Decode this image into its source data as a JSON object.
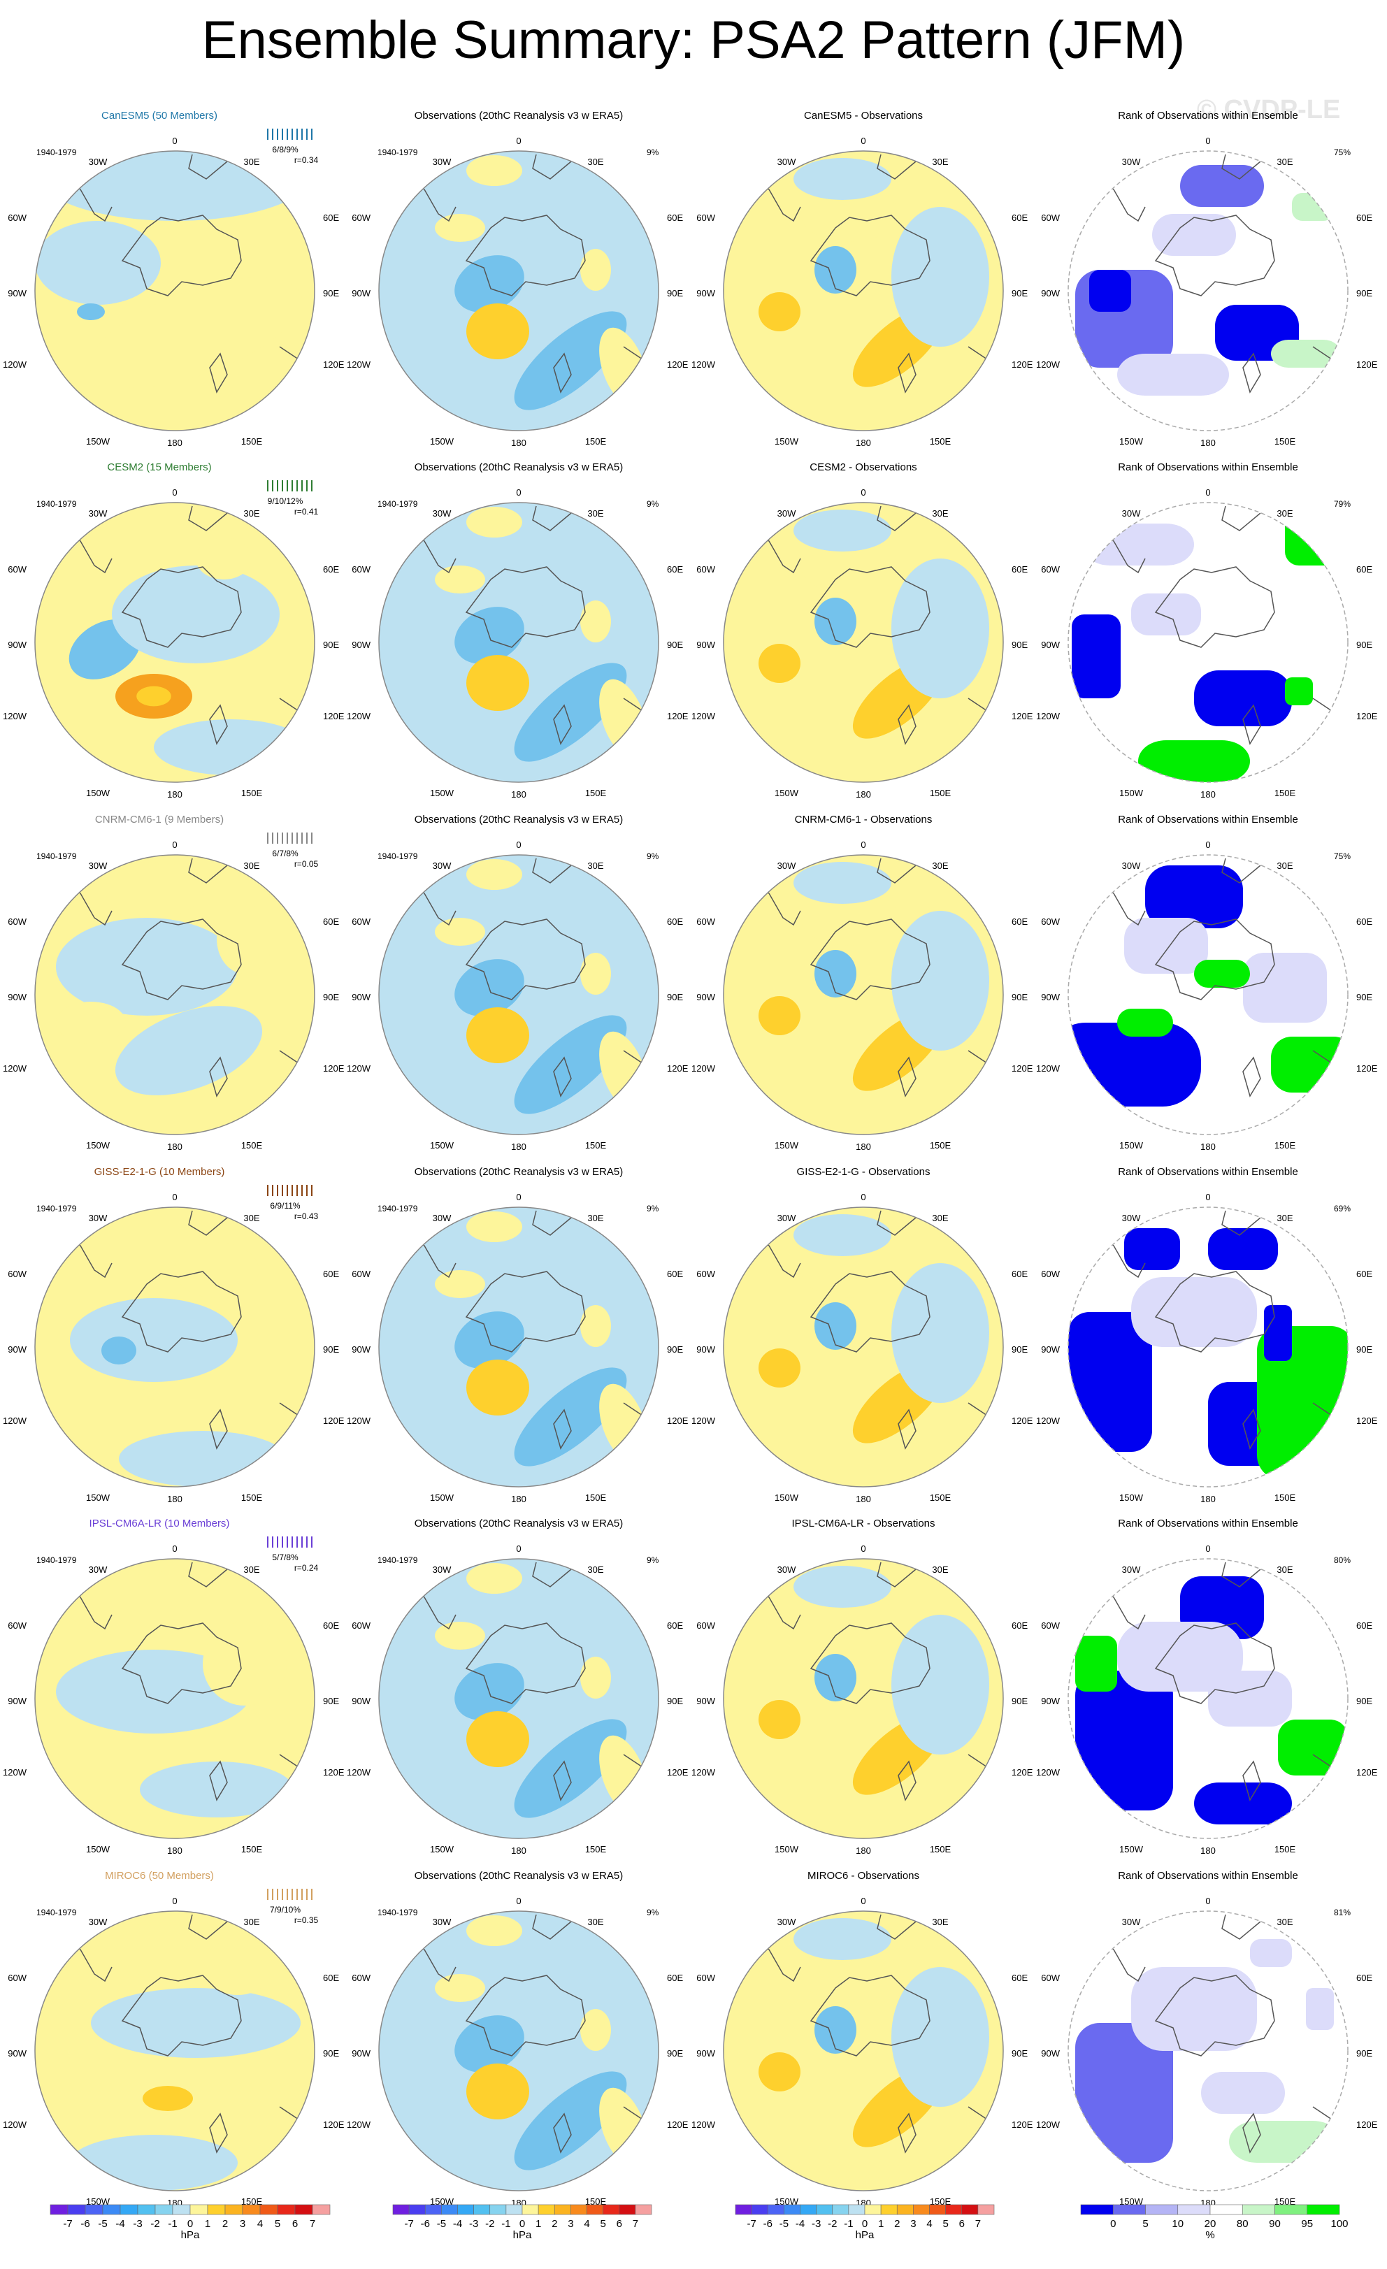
{
  "title": "Ensemble Summary: PSA2 Pattern (JFM)",
  "watermark": "© CVDP-LE",
  "colors": {
    "yellow": "#fdf59b",
    "lightblue": "#bde1f1",
    "medblue": "#74c2ec",
    "orange": "#fed02d",
    "darkorange": "#f6a11e",
    "rank_blue": "#0000f0",
    "rank_midblue": "#6a6af0",
    "rank_lightblue": "#dcdcfa",
    "rank_green": "#00ee00",
    "rank_lightgreen": "#c8f5c8"
  },
  "common": {
    "period": "1940-1979",
    "obs_title": "Observations (20thC Reanalysis v3 w ERA5)",
    "obs_pct": "9%",
    "rank_title": "Rank of Observations within Ensemble",
    "lon_labels": {
      "0": "0",
      "30E": "30E",
      "60E": "60E",
      "90E": "90E",
      "120E": "120E",
      "150E": "150E",
      "180": "180",
      "150W": "150W",
      "120W": "120W",
      "90W": "90W",
      "60W": "60W",
      "30W": "30W"
    }
  },
  "rows": [
    {
      "model": "CanESM5 (50 Members)",
      "model_color": "#1f77a8",
      "stats": "6/8/9%",
      "r": "r=0.34",
      "diff_title": "CanESM5 - Observations",
      "rank_pct": "75%"
    },
    {
      "model": "CESM2 (15 Members)",
      "model_color": "#2e7d32",
      "stats": "9/10/12%",
      "r": "r=0.41",
      "diff_title": "CESM2 - Observations",
      "rank_pct": "79%"
    },
    {
      "model": "CNRM-CM6-1 (9 Members)",
      "model_color": "#888888",
      "stats": "6/7/8%",
      "r": "r=0.05",
      "diff_title": "CNRM-CM6-1 - Observations",
      "rank_pct": "75%"
    },
    {
      "model": "GISS-E2-1-G (10 Members)",
      "model_color": "#8b4513",
      "stats": "6/9/11%",
      "r": "r=0.43",
      "diff_title": "GISS-E2-1-G - Observations",
      "rank_pct": "69%"
    },
    {
      "model": "IPSL-CM6A-LR (10 Members)",
      "model_color": "#6a3fd6",
      "stats": "5/7/8%",
      "r": "r=0.24",
      "diff_title": "IPSL-CM6A-LR - Observations",
      "rank_pct": "80%"
    },
    {
      "model": "MIROC6 (50 Members)",
      "model_color": "#d2a060",
      "stats": "7/9/10%",
      "r": "r=0.35",
      "diff_title": "MIROC6 - Observations",
      "rank_pct": "81%"
    }
  ],
  "colorbar": {
    "labels": [
      "-7",
      "-6",
      "-5",
      "-4",
      "-3",
      "-2",
      "-1",
      "0",
      "1",
      "2",
      "3",
      "4",
      "5",
      "6",
      "7"
    ],
    "colors": [
      "#6f1fe0",
      "#4a3ef0",
      "#4c64f5",
      "#3c8af5",
      "#34a8f5",
      "#52c0f0",
      "#86d3ef",
      "#bde1f1",
      "#fdf59b",
      "#fed02d",
      "#fbb320",
      "#f88a1d",
      "#f05a18",
      "#e8281a",
      "#d40f12",
      "#f5a0a0"
    ],
    "unit": "hPa"
  },
  "rank_colorbar": {
    "labels": [
      "0",
      "5",
      "10",
      "20",
      "80",
      "90",
      "95",
      "100"
    ],
    "colors": [
      "#0000f0",
      "#6a6af0",
      "#b4b4f5",
      "#dcdcfa",
      "#ffffff",
      "#c8f5c8",
      "#7ff07f",
      "#00ee00"
    ],
    "unit": "%"
  }
}
